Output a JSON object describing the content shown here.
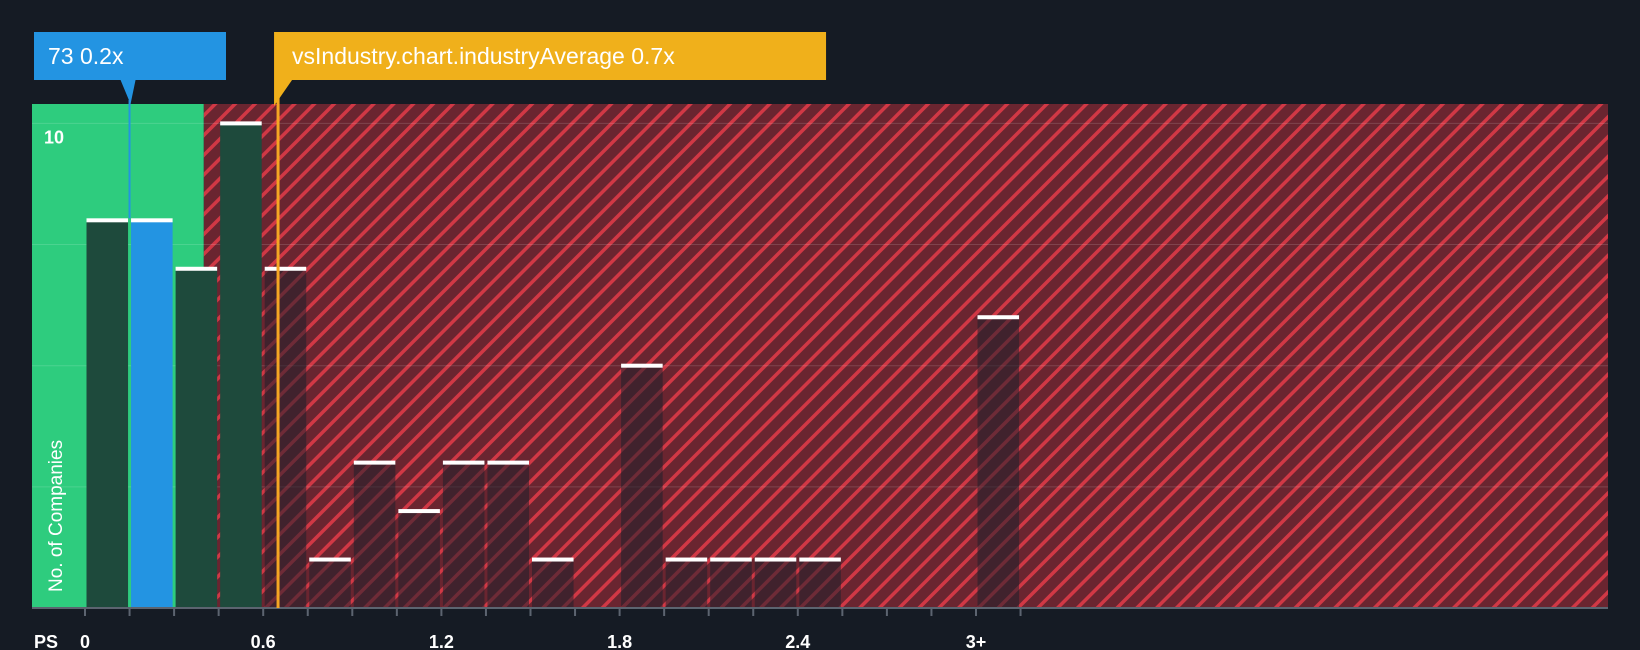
{
  "chart_data": {
    "type": "bar",
    "xlabel": "PS",
    "ylabel": "No. of Companies",
    "ylim": [
      0,
      10.4
    ],
    "y_ticks": [
      {
        "value": 10,
        "label": "10"
      }
    ],
    "x_tick_labels": [
      "0",
      "0.6",
      "1.2",
      "1.8",
      "2.4",
      "3+"
    ],
    "bin_width": 0.15,
    "bars": [
      {
        "x": 0.0,
        "value": 8
      },
      {
        "x": 0.15,
        "value": 8,
        "highlight": true
      },
      {
        "x": 0.3,
        "value": 7
      },
      {
        "x": 0.45,
        "value": 10
      },
      {
        "x": 0.6,
        "value": 7
      },
      {
        "x": 0.75,
        "value": 1
      },
      {
        "x": 0.9,
        "value": 3
      },
      {
        "x": 1.05,
        "value": 2
      },
      {
        "x": 1.2,
        "value": 3
      },
      {
        "x": 1.35,
        "value": 3
      },
      {
        "x": 1.5,
        "value": 1
      },
      {
        "x": 1.65,
        "value": 0
      },
      {
        "x": 1.8,
        "value": 5
      },
      {
        "x": 1.95,
        "value": 1
      },
      {
        "x": 2.1,
        "value": 1
      },
      {
        "x": 2.25,
        "value": 1
      },
      {
        "x": 2.4,
        "value": 1
      },
      {
        "x": 2.55,
        "value": 0
      },
      {
        "x": 2.7,
        "value": 0
      },
      {
        "x": 2.85,
        "value": 0
      },
      {
        "x": 3.0,
        "value": 6
      }
    ],
    "company": {
      "label": "73 0.2x",
      "value": 0.2
    },
    "industry_average": {
      "label": "vsIndustry.chart.industryAverage 0.7x",
      "value": 0.7
    },
    "colors": {
      "background": "#151b24",
      "fair_zone": "#2ecc7e",
      "overvalued_zone": "#c0343f",
      "bar": "#1e4a3c",
      "highlight_bar": "#2394e2",
      "bar_top": "#ffffff",
      "company_callout": "#2394e2",
      "industry_callout": "#f0b01b",
      "industry_line": "#f5a623"
    }
  }
}
